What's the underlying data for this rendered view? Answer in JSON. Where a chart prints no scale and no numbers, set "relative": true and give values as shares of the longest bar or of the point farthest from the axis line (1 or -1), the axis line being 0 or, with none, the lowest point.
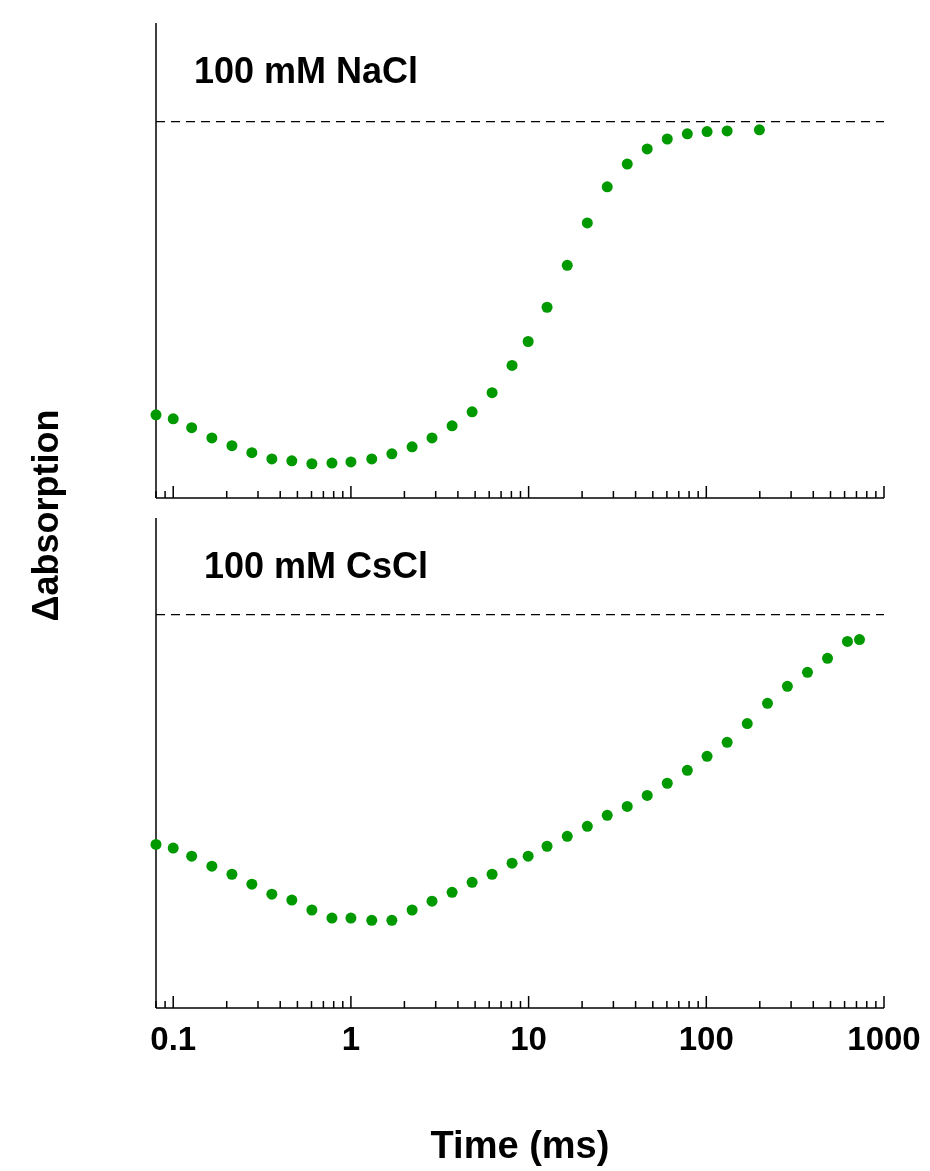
{
  "chart_data": [
    {
      "type": "scatter",
      "relative": true,
      "ylabel": "Δabsorption",
      "annotations": [
        "100 mM NaCl"
      ],
      "marker": "circle",
      "grid": false,
      "log": "x",
      "tick_labels": false,
      "xlim": [
        0.08,
        1000
      ],
      "xticks": [
        {
          "value": 0.08,
          "label": null
        },
        {
          "value": 0.09,
          "label": null
        },
        0.1,
        {
          "value": 0.2,
          "label": null
        },
        {
          "value": 0.3,
          "label": null
        },
        {
          "value": 0.4,
          "label": null
        },
        {
          "value": 0.5,
          "label": null
        },
        {
          "value": 0.6,
          "label": null
        },
        {
          "value": 0.7,
          "label": null
        },
        {
          "value": 0.8,
          "label": null
        },
        {
          "value": 0.9,
          "label": null
        },
        1,
        {
          "value": 2,
          "label": null
        },
        {
          "value": 3,
          "label": null
        },
        {
          "value": 4,
          "label": null
        },
        {
          "value": 5,
          "label": null
        },
        {
          "value": 6,
          "label": null
        },
        {
          "value": 7,
          "label": null
        },
        {
          "value": 8,
          "label": null
        },
        {
          "value": 9,
          "label": null
        },
        10,
        {
          "value": 20,
          "label": null
        },
        {
          "value": 30,
          "label": null
        },
        {
          "value": 40,
          "label": null
        },
        {
          "value": 50,
          "label": null
        },
        {
          "value": 60,
          "label": null
        },
        {
          "value": 70,
          "label": null
        },
        {
          "value": 80,
          "label": null
        },
        {
          "value": 90,
          "label": null
        },
        100,
        {
          "value": 200,
          "label": null
        },
        {
          "value": 300,
          "label": null
        },
        {
          "value": 400,
          "label": null
        },
        {
          "value": 500,
          "label": null
        },
        {
          "value": 600,
          "label": null
        },
        {
          "value": 700,
          "label": null
        },
        {
          "value": 800,
          "label": null
        },
        {
          "value": 900,
          "label": null
        },
        1000
      ],
      "ref_lines": [
        {
          "axis": "y",
          "value": 1.022,
          "line_style": "dashed",
          "color": "#000000"
        }
      ],
      "series": [
        {
          "color": "#009900",
          "x": [
            0.08,
            0.1,
            0.127,
            0.165,
            0.214,
            0.277,
            0.359,
            0.465,
            0.603,
            0.782,
            1,
            1.31,
            1.7,
            2.21,
            2.86,
            3.71,
            4.81,
            6.23,
            8.07,
            9.94,
            12.7,
            16.5,
            21.4,
            27.7,
            35.9,
            46.5,
            60.3,
            78.2,
            101,
            131,
            199
          ],
          "values": [
            0.226,
            0.215,
            0.191,
            0.163,
            0.142,
            0.123,
            0.106,
            0.101,
            0.093,
            0.095,
            0.098,
            0.106,
            0.12,
            0.139,
            0.163,
            0.196,
            0.234,
            0.286,
            0.36,
            0.425,
            0.518,
            0.632,
            0.747,
            0.845,
            0.907,
            0.948,
            0.975,
            0.989,
            0.995,
            0.997,
            1
          ]
        }
      ]
    },
    {
      "type": "scatter",
      "relative": true,
      "xlabel": "Time (ms)",
      "annotations": [
        "100 mM CsCl"
      ],
      "marker": "circle",
      "grid": false,
      "log": "x",
      "tick_labels": "x",
      "xlim": [
        0.08,
        1000
      ],
      "xticks": [
        {
          "value": 0.08,
          "label": null
        },
        {
          "value": 0.09,
          "label": null
        },
        0.1,
        {
          "value": 0.2,
          "label": null
        },
        {
          "value": 0.3,
          "label": null
        },
        {
          "value": 0.4,
          "label": null
        },
        {
          "value": 0.5,
          "label": null
        },
        {
          "value": 0.6,
          "label": null
        },
        {
          "value": 0.7,
          "label": null
        },
        {
          "value": 0.8,
          "label": null
        },
        {
          "value": 0.9,
          "label": null
        },
        1,
        {
          "value": 2,
          "label": null
        },
        {
          "value": 3,
          "label": null
        },
        {
          "value": 4,
          "label": null
        },
        {
          "value": 5,
          "label": null
        },
        {
          "value": 6,
          "label": null
        },
        {
          "value": 7,
          "label": null
        },
        {
          "value": 8,
          "label": null
        },
        {
          "value": 9,
          "label": null
        },
        10,
        {
          "value": 20,
          "label": null
        },
        {
          "value": 30,
          "label": null
        },
        {
          "value": 40,
          "label": null
        },
        {
          "value": 50,
          "label": null
        },
        {
          "value": 60,
          "label": null
        },
        {
          "value": 70,
          "label": null
        },
        {
          "value": 80,
          "label": null
        },
        {
          "value": 90,
          "label": null
        },
        100,
        {
          "value": 200,
          "label": null
        },
        {
          "value": 300,
          "label": null
        },
        {
          "value": 400,
          "label": null
        },
        {
          "value": 500,
          "label": null
        },
        {
          "value": 600,
          "label": null
        },
        {
          "value": 700,
          "label": null
        },
        {
          "value": 800,
          "label": null
        },
        {
          "value": 900,
          "label": null
        },
        1000
      ],
      "ref_lines": [
        {
          "axis": "y",
          "value": 1.068,
          "line_style": "dashed",
          "color": "#000000"
        }
      ],
      "series": [
        {
          "color": "#009900",
          "x": [
            0.08,
            0.1,
            0.127,
            0.165,
            0.214,
            0.277,
            0.359,
            0.465,
            0.603,
            0.782,
            1,
            1.31,
            1.7,
            2.21,
            2.86,
            3.71,
            4.81,
            6.23,
            8.07,
            9.94,
            12.7,
            16.5,
            21.4,
            27.7,
            35.9,
            46.5,
            60.3,
            78.2,
            101,
            131,
            170,
            221,
            286,
            371,
            481,
            623,
            728
          ],
          "values": [
            0.444,
            0.434,
            0.412,
            0.385,
            0.363,
            0.336,
            0.309,
            0.293,
            0.266,
            0.244,
            0.244,
            0.238,
            0.238,
            0.266,
            0.29,
            0.314,
            0.341,
            0.363,
            0.393,
            0.412,
            0.439,
            0.466,
            0.493,
            0.523,
            0.547,
            0.577,
            0.61,
            0.645,
            0.683,
            0.721,
            0.772,
            0.827,
            0.873,
            0.911,
            0.949,
            0.995,
            1
          ]
        }
      ]
    }
  ]
}
